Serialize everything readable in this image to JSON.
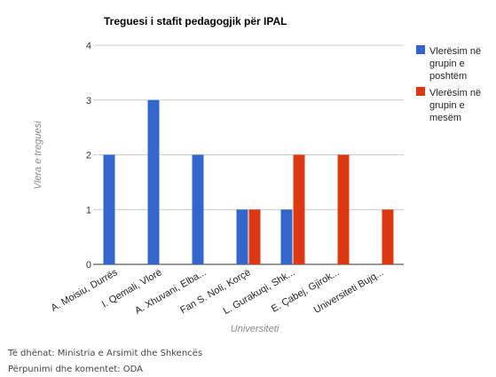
{
  "chart_data": {
    "type": "bar",
    "title": "Treguesi i stafit pedagogjik për IPAL",
    "xlabel": "Universiteti",
    "ylabel": "Vlera e treguesi",
    "ylim": [
      0,
      4
    ],
    "yticks": [
      0,
      1,
      2,
      3,
      4
    ],
    "grid": true,
    "legend_position": "right",
    "categories": [
      "A. Moisiu, Durrës",
      "I. Qemali, Vlorë",
      "A. Xhuvani, Elba...",
      "Fan S. Noli, Korçë",
      "L. Gurakuqi, Shk...",
      "E. Çabej, Gjirok...",
      "Universiteti Bujq..."
    ],
    "series": [
      {
        "name": "Vlerësim në grupin e poshtëm",
        "color": "#3366cc",
        "values": [
          2,
          3,
          2,
          1,
          1,
          0,
          0
        ]
      },
      {
        "name": "Vlerësim në grupin e mesëm",
        "color": "#dc3912",
        "values": [
          0,
          0,
          0,
          1,
          2,
          2,
          1
        ]
      }
    ]
  },
  "footer": {
    "source": "Të dhënat: Ministria e Arsimit dhe Shkencës",
    "processing": "Përpunimi dhe komentet: ODA"
  }
}
